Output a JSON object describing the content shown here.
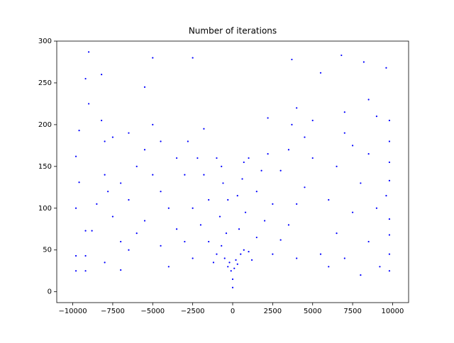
{
  "chart_data": {
    "type": "scatter",
    "title": "Number of iterations",
    "color": "#0000ff",
    "x": [
      0,
      0,
      -100,
      100,
      -200,
      200,
      -300,
      300,
      -500,
      500,
      -700,
      700,
      -1000,
      1000,
      -400,
      400,
      -800,
      800,
      -300,
      300,
      -600,
      600,
      -700,
      700,
      -1200,
      1200,
      -1500,
      1500,
      -2000,
      2000,
      -2500,
      2500,
      -1500,
      1500,
      -1800,
      1800,
      -2200,
      2200,
      -1000,
      1000,
      -2500,
      2500,
      -3000,
      3000,
      -3500,
      3500,
      -4000,
      4000,
      -4500,
      4500,
      -3000,
      3000,
      -3500,
      3500,
      -4500,
      4500,
      -5000,
      5000,
      -2500,
      3700,
      -5500,
      5500,
      -5000,
      -9000,
      6800,
      -8200,
      8200,
      9600,
      -9200,
      -9800,
      -9200,
      -9800,
      -9200,
      -8800,
      -9200,
      -9800,
      -9600,
      -9800,
      -9600,
      -8500,
      -8000,
      -7800,
      -7500,
      -7000,
      -8000,
      -7000,
      -6500,
      -6000,
      -6000,
      -5500,
      -6500,
      -7500,
      -8200,
      -9000,
      -8000,
      -4000,
      -4500,
      -5500,
      -6500,
      -7000,
      -5000,
      9800,
      9200,
      9800,
      9800,
      9800,
      9600,
      9800,
      9800,
      9800,
      9800,
      9000,
      8500,
      8000,
      7500,
      7000,
      6500,
      6000,
      6500,
      7000,
      7500,
      8500,
      5500,
      5000,
      6000,
      8000,
      4000,
      9000,
      7000,
      8500,
      4000,
      3700,
      2200,
      -2800,
      -1800
    ],
    "values": [
      5,
      15,
      25,
      28,
      35,
      38,
      30,
      33,
      40,
      45,
      55,
      50,
      45,
      48,
      70,
      75,
      90,
      95,
      110,
      115,
      130,
      135,
      150,
      155,
      35,
      38,
      60,
      65,
      80,
      85,
      100,
      105,
      110,
      120,
      140,
      145,
      160,
      165,
      160,
      160,
      40,
      45,
      60,
      62,
      75,
      80,
      100,
      105,
      120,
      125,
      140,
      145,
      160,
      170,
      180,
      185,
      200,
      205,
      280,
      278,
      245,
      262,
      280,
      287,
      283,
      260,
      275,
      268,
      255,
      25,
      25,
      43,
      43,
      73,
      73,
      100,
      131,
      162,
      193,
      105,
      140,
      120,
      90,
      60,
      35,
      26,
      50,
      70,
      150,
      170,
      190,
      185,
      205,
      225,
      180,
      30,
      55,
      85,
      110,
      130,
      140,
      25,
      30,
      45,
      68,
      87,
      115,
      133,
      155,
      180,
      205,
      100,
      60,
      130,
      95,
      40,
      70,
      110,
      150,
      190,
      175,
      165,
      45,
      160,
      30,
      20,
      40,
      210,
      215,
      230,
      220,
      200,
      208,
      180,
      195
    ],
    "xlim": [
      -11000,
      11000
    ],
    "ylim": [
      -13,
      300
    ],
    "xticks": [
      {
        "value": -10000,
        "label": "−10000"
      },
      {
        "value": -7500,
        "label": "−7500"
      },
      {
        "value": -5000,
        "label": "−5000"
      },
      {
        "value": -2500,
        "label": "−2500"
      },
      0,
      2500,
      5000,
      7500,
      10000
    ],
    "yticks": [
      0,
      50,
      100,
      150,
      200,
      250,
      300
    ]
  }
}
